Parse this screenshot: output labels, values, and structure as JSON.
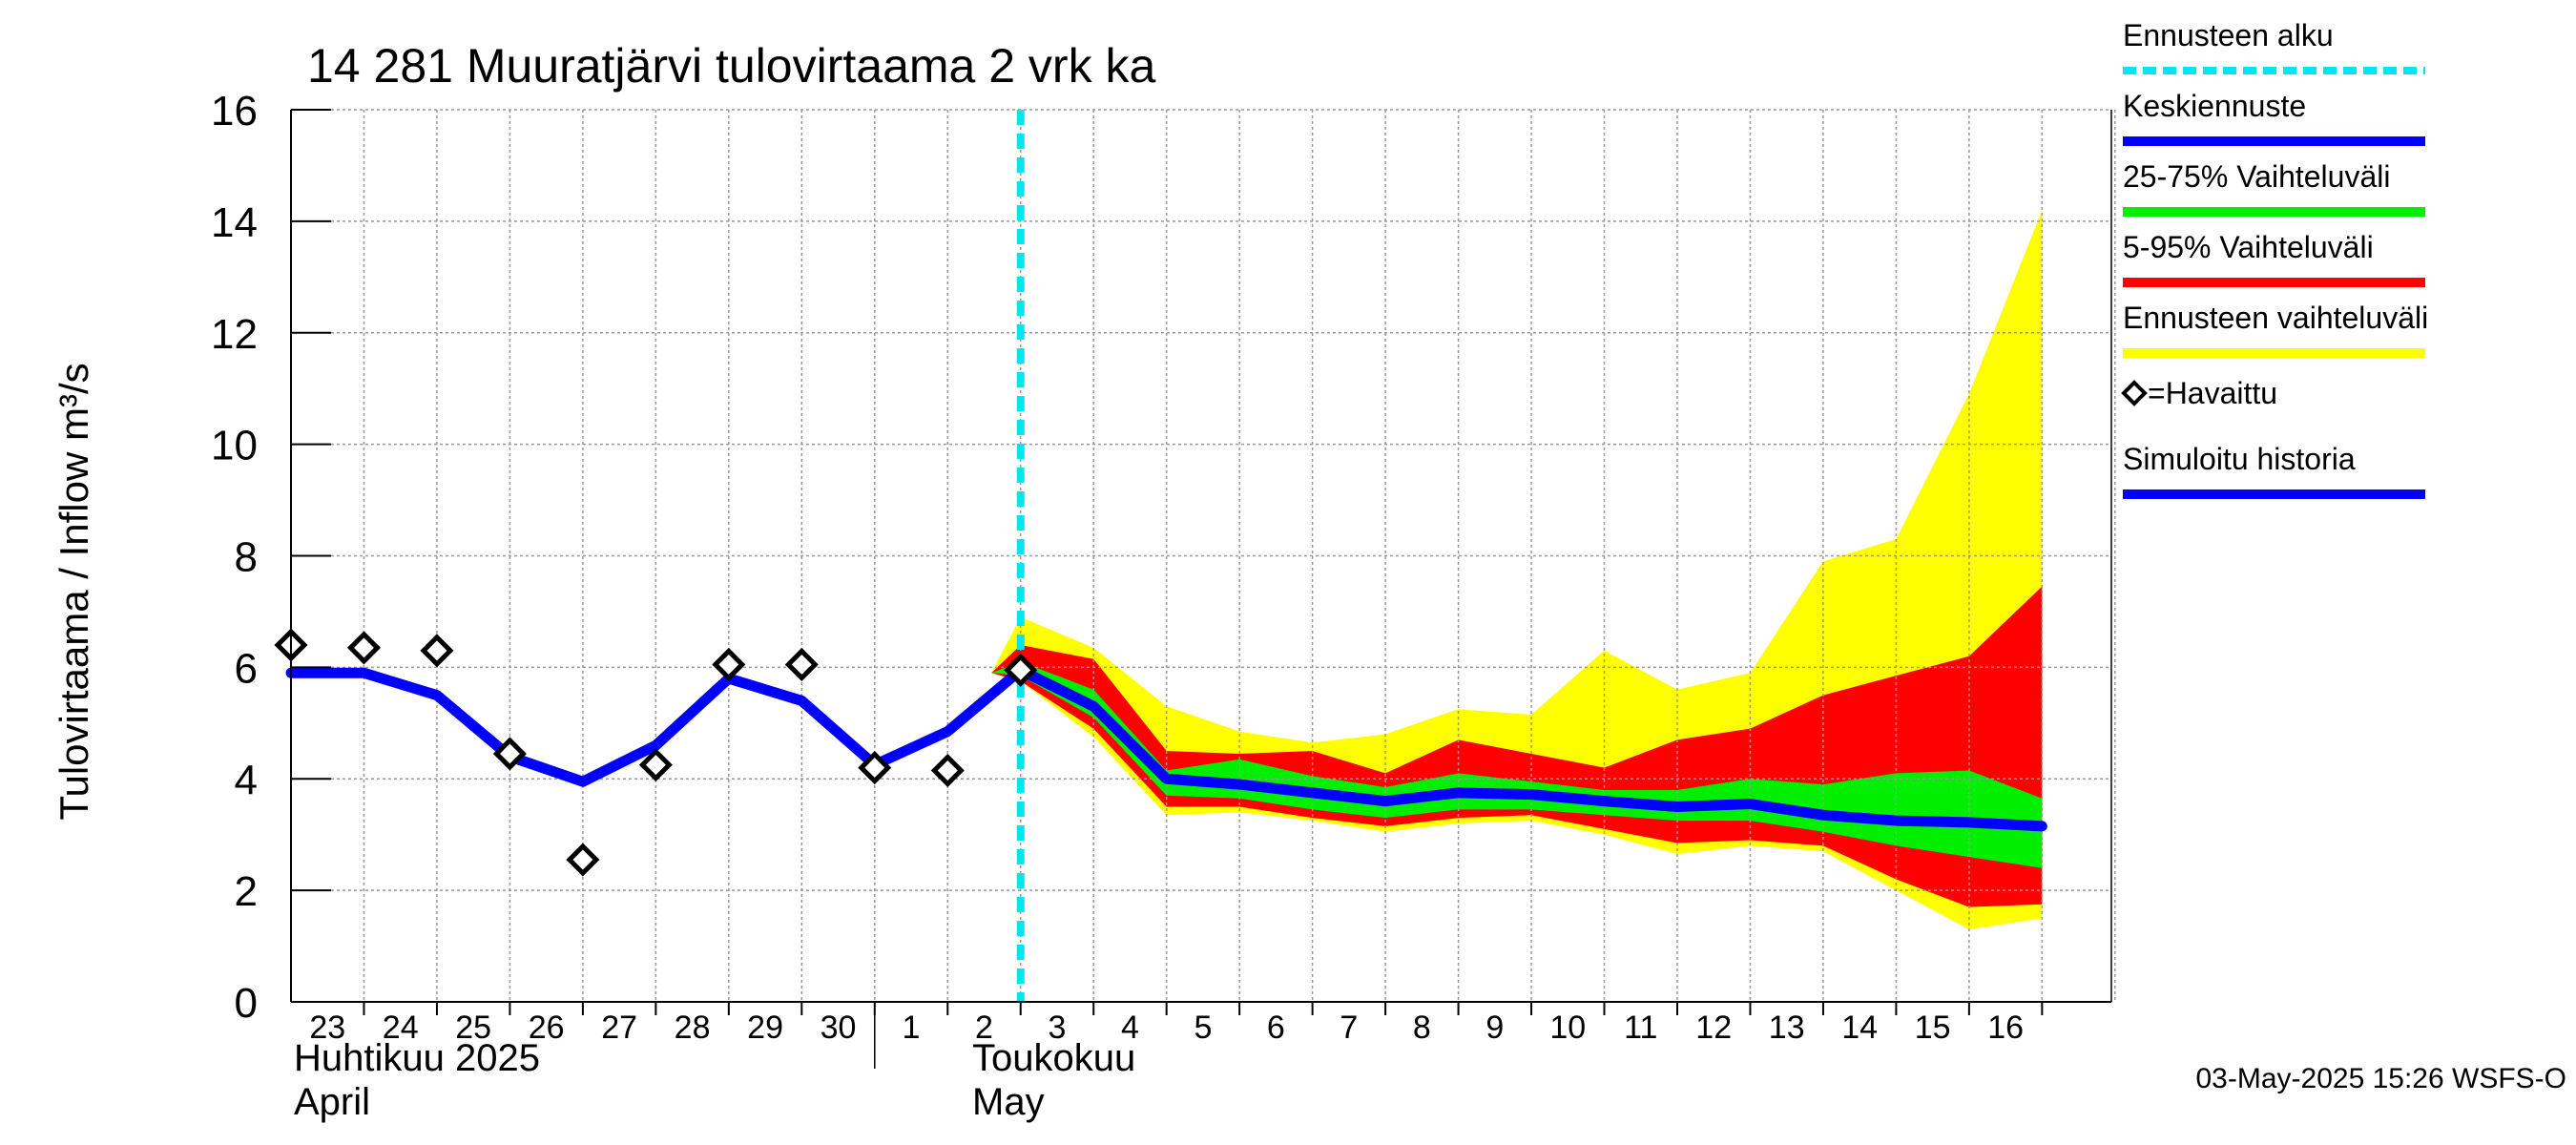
{
  "chart_data": {
    "type": "line",
    "title": "14 281 Muuratjärvi tulovirtaama 2 vrk ka",
    "ylabel": "Tulovirtaama / Inflow    m³/s",
    "ylim": [
      0,
      16
    ],
    "yticks": [
      0,
      2,
      4,
      6,
      8,
      10,
      12,
      14,
      16
    ],
    "x_day_range": [
      -10,
      14
    ],
    "x_ticks": [
      {
        "day": -10,
        "label": "23"
      },
      {
        "day": -9,
        "label": "24"
      },
      {
        "day": -8,
        "label": "25"
      },
      {
        "day": -7,
        "label": "26"
      },
      {
        "day": -6,
        "label": "27"
      },
      {
        "day": -5,
        "label": "28"
      },
      {
        "day": -4,
        "label": "29"
      },
      {
        "day": -3,
        "label": "30"
      },
      {
        "day": -2,
        "label": "1"
      },
      {
        "day": -1,
        "label": "2"
      },
      {
        "day": 0,
        "label": "3"
      },
      {
        "day": 1,
        "label": "4"
      },
      {
        "day": 2,
        "label": "5"
      },
      {
        "day": 3,
        "label": "6"
      },
      {
        "day": 4,
        "label": "7"
      },
      {
        "day": 5,
        "label": "8"
      },
      {
        "day": 6,
        "label": "9"
      },
      {
        "day": 7,
        "label": "10"
      },
      {
        "day": 8,
        "label": "11"
      },
      {
        "day": 9,
        "label": "12"
      },
      {
        "day": 10,
        "label": "13"
      },
      {
        "day": 11,
        "label": "14"
      },
      {
        "day": 12,
        "label": "15"
      },
      {
        "day": 13,
        "label": "16"
      }
    ],
    "month_labels": [
      {
        "day": -10,
        "line1": "Huhtikuu  2025",
        "line2": "April"
      },
      {
        "day": -1,
        "line1": "Toukokuu",
        "line2": "May"
      }
    ],
    "month_separator_day": -2,
    "forecast_start_day": 0,
    "colors": {
      "forecast_start": "#00e5ee",
      "mean_forecast": "#0000ff",
      "band_25_75": "#00ee00",
      "band_5_95": "#ff0000",
      "band_full": "#ffff00",
      "simulated": "#0000ff",
      "observed": "#000000",
      "grid": "#999999"
    },
    "legend": [
      {
        "key": "forecast_start",
        "label": "Ennusteen alku",
        "style": "dashed"
      },
      {
        "key": "mean_forecast",
        "label": "Keskiennuste",
        "style": "line"
      },
      {
        "key": "band_25_75",
        "label": "25-75% Vaihteluväli",
        "style": "line"
      },
      {
        "key": "band_5_95",
        "label": "5-95% Vaihteluväli",
        "style": "line"
      },
      {
        "key": "band_full",
        "label": "Ennusteen vaihteluväli",
        "style": "line"
      },
      {
        "key": "observed",
        "label": "=Havaittu",
        "style": "marker"
      },
      {
        "key": "simulated",
        "label": "Simuloitu historia",
        "style": "line"
      }
    ],
    "series": [
      {
        "name": "Simuloitu historia",
        "x": [
          -10,
          -9,
          -8,
          -7,
          -6,
          -5,
          -4,
          -3,
          -2,
          -1,
          0
        ],
        "values": [
          5.9,
          5.9,
          5.5,
          4.4,
          3.95,
          4.6,
          5.8,
          5.4,
          4.25,
          4.85,
          5.95
        ]
      },
      {
        "name": "Keskiennuste",
        "x": [
          0,
          1,
          2,
          3,
          4,
          5,
          6,
          7,
          8,
          9,
          10,
          11,
          12,
          13,
          14
        ],
        "values": [
          5.95,
          5.3,
          4.0,
          3.9,
          3.75,
          3.6,
          3.75,
          3.72,
          3.6,
          3.5,
          3.55,
          3.35,
          3.25,
          3.22,
          3.15
        ]
      },
      {
        "name": "Havaittu",
        "x": [
          -10,
          -9,
          -8,
          -7,
          -6,
          -5,
          -4,
          -3,
          -2,
          -1,
          0
        ],
        "values": [
          6.4,
          6.35,
          6.3,
          4.45,
          2.55,
          4.25,
          6.05,
          6.05,
          4.2,
          4.15,
          5.95
        ]
      }
    ],
    "bands": [
      {
        "name": "Ennusteen vaihteluväli",
        "x": [
          -0.4,
          0,
          1,
          2,
          3,
          4,
          5,
          6,
          7,
          8,
          9,
          10,
          11,
          12,
          13,
          14
        ],
        "low": [
          5.9,
          5.75,
          4.75,
          3.35,
          3.4,
          3.25,
          3.05,
          3.2,
          3.25,
          3.0,
          2.65,
          2.8,
          2.7,
          2.0,
          1.3,
          1.5
        ],
        "high": [
          5.9,
          6.9,
          6.35,
          5.3,
          4.85,
          4.65,
          4.8,
          5.25,
          5.15,
          6.3,
          5.6,
          5.9,
          7.9,
          8.3,
          10.9,
          14.2
        ]
      },
      {
        "name": "5-95% Vaihteluväli",
        "x": [
          -0.4,
          0,
          1,
          2,
          3,
          4,
          5,
          6,
          7,
          8,
          9,
          10,
          11,
          12,
          13,
          14
        ],
        "low": [
          5.9,
          5.75,
          4.9,
          3.5,
          3.5,
          3.3,
          3.15,
          3.3,
          3.35,
          3.1,
          2.85,
          2.9,
          2.8,
          2.2,
          1.7,
          1.75
        ],
        "high": [
          5.9,
          6.4,
          6.15,
          4.5,
          4.45,
          4.5,
          4.1,
          4.7,
          4.45,
          4.2,
          4.7,
          4.9,
          5.5,
          5.85,
          6.2,
          7.45
        ]
      },
      {
        "name": "25-75% Vaihteluväli",
        "x": [
          -0.4,
          0,
          1,
          2,
          3,
          4,
          5,
          6,
          7,
          8,
          9,
          10,
          11,
          12,
          13,
          14
        ],
        "low": [
          5.9,
          5.85,
          5.1,
          3.7,
          3.65,
          3.45,
          3.3,
          3.45,
          3.45,
          3.35,
          3.25,
          3.25,
          3.05,
          2.8,
          2.6,
          2.4
        ],
        "high": [
          5.9,
          6.1,
          5.6,
          4.15,
          4.35,
          4.05,
          3.85,
          4.1,
          3.95,
          3.8,
          3.8,
          4.0,
          3.9,
          4.1,
          4.15,
          3.65
        ]
      }
    ]
  },
  "footer": "03-May-2025 15:26 WSFS-O"
}
